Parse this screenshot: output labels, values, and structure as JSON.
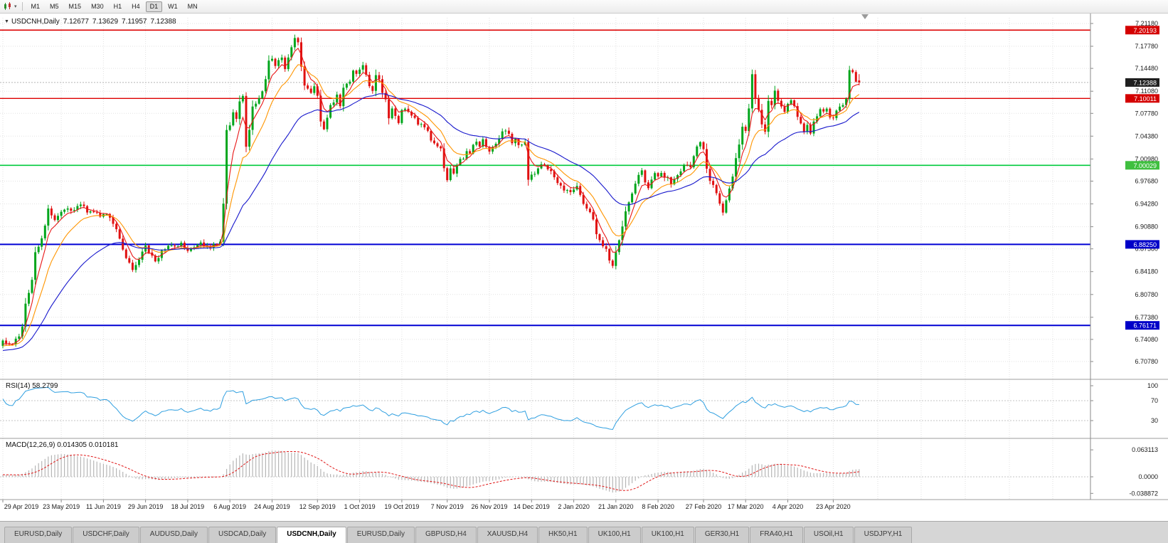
{
  "toolbar": {
    "timeframes": [
      {
        "label": "M1"
      },
      {
        "label": "M5"
      },
      {
        "label": "M15"
      },
      {
        "label": "M30"
      },
      {
        "label": "H1"
      },
      {
        "label": "H4"
      },
      {
        "label": "D1"
      },
      {
        "label": "W1"
      },
      {
        "label": "MN"
      }
    ],
    "active_timeframe": "D1"
  },
  "chart": {
    "header": {
      "symbol": "USDCNH,Daily",
      "open": "7.12677",
      "high": "7.13629",
      "low": "7.11957",
      "close": "7.12388"
    },
    "rsi_label": "RSI(14)",
    "rsi_value": "58.2799",
    "macd_label": "MACD(12,26,9)",
    "macd_value": "0.014305",
    "macd_signal_value": "0.010181"
  },
  "chart_data": {
    "type": "candlestick",
    "symbol": "USDCNH",
    "period": "Daily",
    "num_candles": 265,
    "last_candle": {
      "o": 7.12677,
      "h": 7.13629,
      "l": 7.11957,
      "c": 7.12388
    },
    "current_price": "7.12388",
    "price_axis_labels": [
      "7.21180",
      "7.17780",
      "7.14480",
      "7.11080",
      "7.07780",
      "7.04380",
      "7.00980",
      "6.97680",
      "6.94280",
      "6.90880",
      "6.87580",
      "6.84180",
      "6.80780",
      "6.77380",
      "6.74080",
      "6.70780"
    ],
    "hlines": [
      {
        "label": "7.20193",
        "color": "#dd0000",
        "width": 1.6
      },
      {
        "label": "7.10011",
        "color": "#dd0000",
        "width": 1.3
      },
      {
        "label": "7.00029",
        "color": "#00ca3c",
        "width": 1.6
      },
      {
        "label": "6.88250",
        "color": "#0000d4",
        "width": 2
      },
      {
        "label": "6.76171",
        "color": "#0000d4",
        "width": 2
      }
    ],
    "badges": [
      {
        "label": "7.20193",
        "color": "#d40000"
      },
      {
        "label": "7.12388",
        "color": "#1f1f1f"
      },
      {
        "label": "7.10011",
        "color": "#d40000"
      },
      {
        "label": "7.00029",
        "color": "#3fbf3f"
      },
      {
        "label": "6.88250",
        "color": "#0000c8"
      },
      {
        "label": "6.76171",
        "color": "#0000c8"
      }
    ],
    "date_labels": [
      {
        "label": "29 Apr 2019",
        "index": 0
      },
      {
        "label": "23 May 2019",
        "index": 18
      },
      {
        "label": "11 Jun 2019",
        "index": 31
      },
      {
        "label": "29 Jun 2019",
        "index": 44
      },
      {
        "label": "18 Jul 2019",
        "index": 57
      },
      {
        "label": "6 Aug 2019",
        "index": 70
      },
      {
        "label": "24 Aug 2019",
        "index": 83
      },
      {
        "label": "12 Sep 2019",
        "index": 97
      },
      {
        "label": "1 Oct 2019",
        "index": 110
      },
      {
        "label": "19 Oct 2019",
        "index": 123
      },
      {
        "label": "7 Nov 2019",
        "index": 137
      },
      {
        "label": "26 Nov 2019",
        "index": 150
      },
      {
        "label": "14 Dec 2019",
        "index": 163
      },
      {
        "label": "2 Jan 2020",
        "index": 176
      },
      {
        "label": "21 Jan 2020",
        "index": 189
      },
      {
        "label": "8 Feb 2020",
        "index": 202
      },
      {
        "label": "27 Feb 2020",
        "index": 216
      },
      {
        "label": "17 Mar 2020",
        "index": 229
      },
      {
        "label": "4 Apr 2020",
        "index": 242
      },
      {
        "label": "23 Apr 2020",
        "index": 256
      }
    ],
    "prehistory_anchors": [
      [
        -60,
        6.716
      ],
      [
        -40,
        6.705
      ],
      [
        -25,
        6.712
      ],
      [
        -12,
        6.728
      ],
      [
        -1,
        6.734
      ]
    ],
    "close_anchors": [
      [
        0,
        6.737
      ],
      [
        3,
        6.733
      ],
      [
        5,
        6.746
      ],
      [
        6,
        6.762
      ],
      [
        7,
        6.794
      ],
      [
        8,
        6.812
      ],
      [
        9,
        6.828
      ],
      [
        10,
        6.872
      ],
      [
        11,
        6.878
      ],
      [
        12,
        6.892
      ],
      [
        13,
        6.912
      ],
      [
        14,
        6.936
      ],
      [
        15,
        6.925
      ],
      [
        16,
        6.918
      ],
      [
        17,
        6.927
      ],
      [
        18,
        6.931
      ],
      [
        20,
        6.939
      ],
      [
        22,
        6.931
      ],
      [
        24,
        6.943
      ],
      [
        26,
        6.931
      ],
      [
        28,
        6.933
      ],
      [
        30,
        6.925
      ],
      [
        31,
        6.929
      ],
      [
        33,
        6.921
      ],
      [
        35,
        6.905
      ],
      [
        36,
        6.889
      ],
      [
        38,
        6.86
      ],
      [
        40,
        6.845
      ],
      [
        42,
        6.862
      ],
      [
        44,
        6.88
      ],
      [
        46,
        6.864
      ],
      [
        47,
        6.856
      ],
      [
        49,
        6.874
      ],
      [
        51,
        6.882
      ],
      [
        53,
        6.877
      ],
      [
        55,
        6.883
      ],
      [
        57,
        6.873
      ],
      [
        59,
        6.881
      ],
      [
        61,
        6.885
      ],
      [
        63,
        6.877
      ],
      [
        65,
        6.883
      ],
      [
        67,
        6.887
      ],
      [
        68,
        6.942
      ],
      [
        69,
        7.055
      ],
      [
        70,
        7.061
      ],
      [
        71,
        7.079
      ],
      [
        72,
        7.068
      ],
      [
        73,
        7.097
      ],
      [
        74,
        7.106
      ],
      [
        75,
        7.031
      ],
      [
        76,
        7.056
      ],
      [
        77,
        7.086
      ],
      [
        78,
        7.091
      ],
      [
        79,
        7.101
      ],
      [
        80,
        7.111
      ],
      [
        81,
        7.126
      ],
      [
        82,
        7.156
      ],
      [
        83,
        7.161
      ],
      [
        84,
        7.146
      ],
      [
        85,
        7.156
      ],
      [
        86,
        7.161
      ],
      [
        87,
        7.146
      ],
      [
        88,
        7.161
      ],
      [
        89,
        7.179
      ],
      [
        90,
        7.191
      ],
      [
        91,
        7.181
      ],
      [
        92,
        7.149
      ],
      [
        93,
        7.121
      ],
      [
        94,
        7.116
      ],
      [
        95,
        7.111
      ],
      [
        96,
        7.119
      ],
      [
        97,
        7.106
      ],
      [
        98,
        7.066
      ],
      [
        99,
        7.056
      ],
      [
        100,
        7.071
      ],
      [
        101,
        7.091
      ],
      [
        102,
        7.096
      ],
      [
        103,
        7.106
      ],
      [
        104,
        7.091
      ],
      [
        105,
        7.119
      ],
      [
        106,
        7.121
      ],
      [
        107,
        7.126
      ],
      [
        108,
        7.139
      ],
      [
        109,
        7.136
      ],
      [
        110,
        7.146
      ],
      [
        111,
        7.149
      ],
      [
        112,
        7.136
      ],
      [
        113,
        7.119
      ],
      [
        114,
        7.113
      ],
      [
        115,
        7.136
      ],
      [
        116,
        7.129
      ],
      [
        117,
        7.111
      ],
      [
        118,
        7.096
      ],
      [
        119,
        7.071
      ],
      [
        120,
        7.083
      ],
      [
        121,
        7.076
      ],
      [
        122,
        7.066
      ],
      [
        123,
        7.081
      ],
      [
        124,
        7.084
      ],
      [
        125,
        7.079
      ],
      [
        126,
        7.073
      ],
      [
        127,
        7.069
      ],
      [
        128,
        7.061
      ],
      [
        129,
        7.063
      ],
      [
        130,
        7.059
      ],
      [
        131,
        7.053
      ],
      [
        132,
        7.039
      ],
      [
        133,
        7.031
      ],
      [
        134,
        7.029
      ],
      [
        135,
        7.023
      ],
      [
        136,
        6.999
      ],
      [
        137,
        6.979
      ],
      [
        138,
        6.993
      ],
      [
        139,
        6.986
      ],
      [
        140,
        6.999
      ],
      [
        141,
        7.009
      ],
      [
        142,
        7.013
      ],
      [
        143,
        7.023
      ],
      [
        144,
        7.019
      ],
      [
        145,
        7.029
      ],
      [
        146,
        7.036
      ],
      [
        147,
        7.031
      ],
      [
        148,
        7.039
      ],
      [
        149,
        7.029
      ],
      [
        150,
        7.023
      ],
      [
        151,
        7.029
      ],
      [
        152,
        7.033
      ],
      [
        153,
        7.039
      ],
      [
        154,
        7.049
      ],
      [
        155,
        7.053
      ],
      [
        156,
        7.046
      ],
      [
        157,
        7.036
      ],
      [
        158,
        7.041
      ],
      [
        159,
        7.033
      ],
      [
        160,
        7.029
      ],
      [
        161,
        7.033
      ],
      [
        162,
        6.976
      ],
      [
        163,
        6.986
      ],
      [
        164,
        6.989
      ],
      [
        165,
        6.993
      ],
      [
        166,
        6.999
      ],
      [
        167,
        7.003
      ],
      [
        168,
        6.996
      ],
      [
        169,
        6.989
      ],
      [
        170,
        6.983
      ],
      [
        171,
        6.976
      ],
      [
        172,
        6.969
      ],
      [
        173,
        6.963
      ],
      [
        174,
        6.966
      ],
      [
        175,
        6.959
      ],
      [
        176,
        6.963
      ],
      [
        177,
        6.971
      ],
      [
        178,
        6.959
      ],
      [
        179,
        6.941
      ],
      [
        180,
        6.933
      ],
      [
        181,
        6.929
      ],
      [
        182,
        6.919
      ],
      [
        183,
        6.896
      ],
      [
        184,
        6.886
      ],
      [
        185,
        6.881
      ],
      [
        186,
        6.873
      ],
      [
        187,
        6.859
      ],
      [
        188,
        6.85
      ],
      [
        189,
        6.873
      ],
      [
        190,
        6.889
      ],
      [
        191,
        6.909
      ],
      [
        192,
        6.929
      ],
      [
        193,
        6.943
      ],
      [
        194,
        6.959
      ],
      [
        195,
        6.973
      ],
      [
        196,
        6.989
      ],
      [
        197,
        6.993
      ],
      [
        198,
        6.973
      ],
      [
        199,
        6.969
      ],
      [
        200,
        6.979
      ],
      [
        201,
        6.986
      ],
      [
        202,
        6.983
      ],
      [
        203,
        6.986
      ],
      [
        204,
        6.979
      ],
      [
        205,
        6.983
      ],
      [
        206,
        6.973
      ],
      [
        207,
        6.979
      ],
      [
        208,
        6.986
      ],
      [
        209,
        6.991
      ],
      [
        210,
        6.999
      ],
      [
        211,
        7.003
      ],
      [
        212,
        6.996
      ],
      [
        213,
        7.016
      ],
      [
        214,
        7.029
      ],
      [
        215,
        7.033
      ],
      [
        216,
        7.023
      ],
      [
        217,
        6.993
      ],
      [
        218,
        6.979
      ],
      [
        219,
        6.969
      ],
      [
        220,
        6.959
      ],
      [
        221,
        6.946
      ],
      [
        222,
        6.928
      ],
      [
        223,
        6.949
      ],
      [
        224,
        6.963
      ],
      [
        225,
        6.986
      ],
      [
        226,
        7.013
      ],
      [
        227,
        7.033
      ],
      [
        228,
        7.059
      ],
      [
        229,
        7.049
      ],
      [
        230,
        7.086
      ],
      [
        231,
        7.134
      ],
      [
        232,
        7.099
      ],
      [
        233,
        7.086
      ],
      [
        234,
        7.063
      ],
      [
        235,
        7.049
      ],
      [
        236,
        7.096
      ],
      [
        237,
        7.089
      ],
      [
        238,
        7.113
      ],
      [
        239,
        7.099
      ],
      [
        240,
        7.089
      ],
      [
        241,
        7.083
      ],
      [
        242,
        7.093
      ],
      [
        243,
        7.096
      ],
      [
        244,
        7.086
      ],
      [
        245,
        7.073
      ],
      [
        246,
        7.063
      ],
      [
        247,
        7.053
      ],
      [
        248,
        7.059
      ],
      [
        249,
        7.049
      ],
      [
        250,
        7.063
      ],
      [
        251,
        7.076
      ],
      [
        252,
        7.083
      ],
      [
        253,
        7.079
      ],
      [
        254,
        7.086
      ],
      [
        255,
        7.073
      ],
      [
        256,
        7.069
      ],
      [
        257,
        7.083
      ],
      [
        258,
        7.089
      ],
      [
        259,
        7.093
      ],
      [
        260,
        7.099
      ],
      [
        261,
        7.141
      ],
      [
        262,
        7.139
      ],
      [
        263,
        7.128
      ],
      [
        264,
        7.12388
      ]
    ],
    "noise": 0.003,
    "wick": 0.0045,
    "moving_averages": [
      {
        "name": "ma-fast-red",
        "period": 5,
        "color": "#e81717"
      },
      {
        "name": "ma-mid-orange",
        "period": 12,
        "color": "#ff9500"
      },
      {
        "name": "ma-slow-blue",
        "period": 34,
        "color": "#1717cc"
      }
    ],
    "rsi": {
      "period": 14,
      "levels": [
        70,
        30
      ],
      "scale_labels": [
        "100",
        "70",
        "30"
      ],
      "color": "#2f9fe0"
    },
    "macd": {
      "fast": 12,
      "slow": 26,
      "signal": 9,
      "scale_labels": [
        "0.063113",
        "0.0000",
        "-0.038872"
      ],
      "hist_color": "#b6b6b6",
      "signal_color": "#e01717"
    },
    "colors": {
      "up": "#00a51b",
      "down": "#e01010",
      "grid": "#e2e2e2"
    }
  },
  "tabs": {
    "items": [
      {
        "label": "EURUSD,Daily"
      },
      {
        "label": "USDCHF,Daily"
      },
      {
        "label": "AUDUSD,Daily"
      },
      {
        "label": "USDCAD,Daily"
      },
      {
        "label": "USDCNH,Daily"
      },
      {
        "label": "EURUSD,Daily"
      },
      {
        "label": "GBPUSD,H4"
      },
      {
        "label": "XAUUSD,H4"
      },
      {
        "label": "HK50,H1"
      },
      {
        "label": "UK100,H1"
      },
      {
        "label": "UK100,H1"
      },
      {
        "label": "GER30,H1"
      },
      {
        "label": "FRA40,H1"
      },
      {
        "label": "USOil,H1"
      },
      {
        "label": "USDJPY,H1"
      }
    ],
    "active_index": 4
  }
}
